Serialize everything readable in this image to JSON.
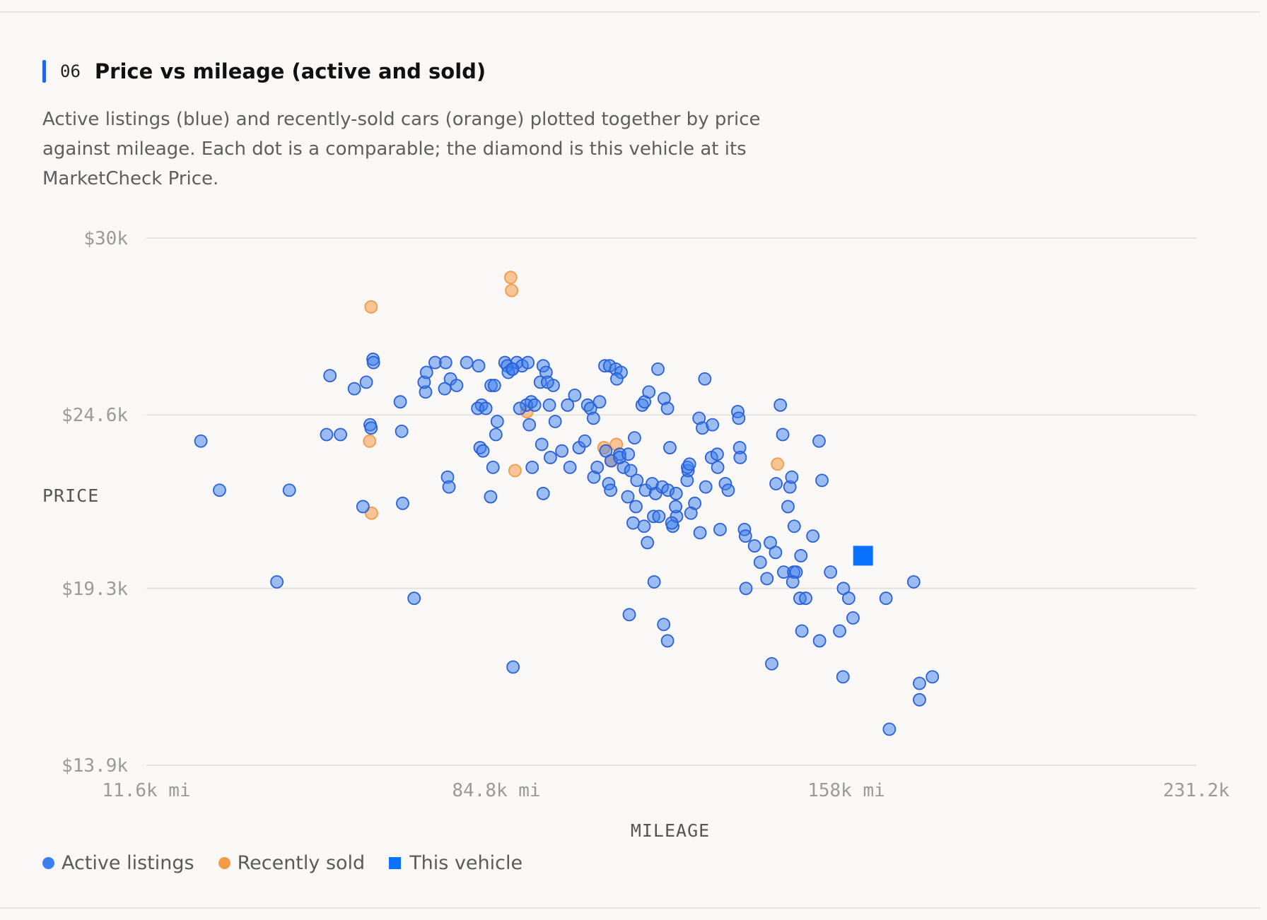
{
  "section": {
    "number": "06",
    "title": "Price vs mileage (active and sold)",
    "description": "Active listings (blue) and recently-sold cars (orange) plotted together by price against mileage. Each dot is a comparable; the diamond is this vehicle at its MarketCheck Price."
  },
  "colors": {
    "accent": "#2563eb",
    "active": "#3b7ff0",
    "sold": "#f59a45",
    "vehicle": "#0a72ff"
  },
  "chart_data": {
    "type": "scatter",
    "xlabel": "MILEAGE",
    "ylabel": "PRICE",
    "xlim": [
      11600,
      231200
    ],
    "ylim": [
      13900,
      30000
    ],
    "x_ticks": [
      {
        "value": 11600,
        "label": "11.6k mi"
      },
      {
        "value": 84800,
        "label": "84.8k mi"
      },
      {
        "value": 158000,
        "label": "158k mi"
      },
      {
        "value": 231200,
        "label": "231.2k"
      }
    ],
    "y_ticks": [
      {
        "value": 30000,
        "label": "$30k"
      },
      {
        "value": 24600,
        "label": "$24.6k"
      },
      {
        "value": 19300,
        "label": "$19.3k"
      },
      {
        "value": 13900,
        "label": "$13.9k"
      }
    ],
    "grid": true,
    "legend": [
      {
        "name": "Active listings",
        "shape": "circle",
        "color": "#3b7ff0"
      },
      {
        "name": "Recently sold",
        "shape": "circle",
        "color": "#f59a45"
      },
      {
        "name": "This vehicle",
        "shape": "square",
        "color": "#0a72ff"
      }
    ],
    "series": [
      {
        "name": "Active listings",
        "points": [
          [
            23000,
            23800
          ],
          [
            26900,
            22300
          ],
          [
            41500,
            22300
          ],
          [
            38900,
            19500
          ],
          [
            50000,
            25800
          ],
          [
            49300,
            24000
          ],
          [
            52200,
            24000
          ],
          [
            55100,
            25400
          ],
          [
            57600,
            25600
          ],
          [
            58400,
            24300
          ],
          [
            58600,
            24200
          ],
          [
            59000,
            26300
          ],
          [
            59100,
            26200
          ],
          [
            56900,
            21800
          ],
          [
            65000,
            24100
          ],
          [
            64700,
            25000
          ],
          [
            65200,
            21900
          ],
          [
            67600,
            19000
          ],
          [
            70000,
            25300
          ],
          [
            69700,
            25600
          ],
          [
            70200,
            25900
          ],
          [
            72000,
            26200
          ],
          [
            74200,
            26200
          ],
          [
            75200,
            25700
          ],
          [
            74000,
            25400
          ],
          [
            76500,
            25500
          ],
          [
            78600,
            26200
          ],
          [
            74600,
            22700
          ],
          [
            74900,
            22400
          ],
          [
            81100,
            26100
          ],
          [
            81700,
            24900
          ],
          [
            80900,
            24800
          ],
          [
            83700,
            25500
          ],
          [
            82600,
            24800
          ],
          [
            84400,
            25500
          ],
          [
            81400,
            23600
          ],
          [
            82000,
            23500
          ],
          [
            84700,
            24000
          ],
          [
            85000,
            24400
          ],
          [
            84100,
            23000
          ],
          [
            83600,
            22100
          ],
          [
            86600,
            26200
          ],
          [
            87100,
            26100
          ],
          [
            88100,
            26000
          ],
          [
            89100,
            26200
          ],
          [
            90200,
            26100
          ],
          [
            91400,
            26200
          ],
          [
            87300,
            25900
          ],
          [
            88200,
            26000
          ],
          [
            92100,
            25000
          ],
          [
            91100,
            24900
          ],
          [
            94000,
            25600
          ],
          [
            94600,
            26100
          ],
          [
            95200,
            25900
          ],
          [
            96700,
            25500
          ],
          [
            95500,
            25600
          ],
          [
            89700,
            24800
          ],
          [
            91700,
            24300
          ],
          [
            92800,
            24900
          ],
          [
            94300,
            23700
          ],
          [
            96100,
            23300
          ],
          [
            92300,
            23000
          ],
          [
            94600,
            22200
          ],
          [
            95900,
            24900
          ],
          [
            97100,
            24400
          ],
          [
            98500,
            23500
          ],
          [
            99700,
            24900
          ],
          [
            101200,
            25200
          ],
          [
            102100,
            23600
          ],
          [
            100200,
            23000
          ],
          [
            103900,
            24900
          ],
          [
            104500,
            24800
          ],
          [
            105100,
            24500
          ],
          [
            106400,
            25000
          ],
          [
            103300,
            23800
          ],
          [
            105200,
            22700
          ],
          [
            105900,
            23000
          ],
          [
            107500,
            26100
          ],
          [
            108500,
            26100
          ],
          [
            109800,
            26000
          ],
          [
            110900,
            25900
          ],
          [
            110000,
            25700
          ],
          [
            107700,
            23500
          ],
          [
            108800,
            23200
          ],
          [
            110600,
            23400
          ],
          [
            111400,
            23000
          ],
          [
            108300,
            22500
          ],
          [
            108700,
            22300
          ],
          [
            110600,
            23300
          ],
          [
            112400,
            23400
          ],
          [
            113700,
            23900
          ],
          [
            115300,
            24900
          ],
          [
            115800,
            25000
          ],
          [
            116700,
            25300
          ],
          [
            112900,
            22900
          ],
          [
            114200,
            22600
          ],
          [
            112300,
            22100
          ],
          [
            114000,
            21800
          ],
          [
            116000,
            22300
          ],
          [
            117400,
            22500
          ],
          [
            118100,
            22200
          ],
          [
            115700,
            21200
          ],
          [
            116400,
            20700
          ],
          [
            117700,
            21500
          ],
          [
            113400,
            21300
          ],
          [
            122500,
            21500
          ],
          [
            121700,
            21200
          ],
          [
            121500,
            21300
          ],
          [
            119500,
            22400
          ],
          [
            120700,
            22300
          ],
          [
            122400,
            22200
          ],
          [
            117800,
            19500
          ],
          [
            118800,
            21500
          ],
          [
            118600,
            26000
          ],
          [
            119900,
            25100
          ],
          [
            120600,
            24800
          ],
          [
            121100,
            23600
          ],
          [
            122300,
            21800
          ],
          [
            124700,
            22600
          ],
          [
            126300,
            21900
          ],
          [
            124900,
            22900
          ],
          [
            124800,
            23000
          ],
          [
            125200,
            23100
          ],
          [
            127200,
            24500
          ],
          [
            127900,
            24200
          ],
          [
            128400,
            25700
          ],
          [
            125500,
            21600
          ],
          [
            127400,
            21000
          ],
          [
            128600,
            22400
          ],
          [
            129800,
            23300
          ],
          [
            131000,
            23400
          ],
          [
            131100,
            23000
          ],
          [
            130000,
            24300
          ],
          [
            131600,
            21100
          ],
          [
            132700,
            22500
          ],
          [
            133300,
            22300
          ],
          [
            135300,
            24700
          ],
          [
            135500,
            24500
          ],
          [
            135700,
            23600
          ],
          [
            135800,
            23300
          ],
          [
            136700,
            21100
          ],
          [
            136900,
            20900
          ],
          [
            137000,
            19300
          ],
          [
            138800,
            20600
          ],
          [
            140000,
            20100
          ],
          [
            141400,
            19600
          ],
          [
            143300,
            22500
          ],
          [
            144200,
            24900
          ],
          [
            144700,
            24000
          ],
          [
            142100,
            20700
          ],
          [
            143200,
            20400
          ],
          [
            145800,
            21800
          ],
          [
            146200,
            22400
          ],
          [
            146600,
            22700
          ],
          [
            147100,
            21200
          ],
          [
            144900,
            19800
          ],
          [
            147000,
            19800
          ],
          [
            147500,
            19800
          ],
          [
            146800,
            19500
          ],
          [
            148500,
            20300
          ],
          [
            148300,
            19000
          ],
          [
            149500,
            19000
          ],
          [
            148700,
            18000
          ],
          [
            151000,
            20900
          ],
          [
            152300,
            23800
          ],
          [
            152900,
            22600
          ],
          [
            154700,
            19800
          ],
          [
            156600,
            18000
          ],
          [
            157400,
            19300
          ],
          [
            158500,
            19000
          ],
          [
            157300,
            16600
          ],
          [
            159400,
            18400
          ],
          [
            166300,
            19000
          ],
          [
            167000,
            15000
          ],
          [
            172100,
            19500
          ],
          [
            173300,
            15900
          ],
          [
            173300,
            16400
          ],
          [
            176000,
            16600
          ],
          [
            88300,
            16900
          ],
          [
            112600,
            18500
          ],
          [
            119800,
            18200
          ],
          [
            120600,
            17700
          ],
          [
            142400,
            17000
          ],
          [
            152400,
            17700
          ]
        ]
      },
      {
        "name": "Recently sold",
        "points": [
          [
            58600,
            27900
          ],
          [
            87800,
            28800
          ],
          [
            88000,
            28400
          ],
          [
            58300,
            23800
          ],
          [
            58700,
            21600
          ],
          [
            88700,
            22900
          ],
          [
            91200,
            24700
          ],
          [
            107300,
            23600
          ],
          [
            108900,
            23200
          ],
          [
            109900,
            23700
          ],
          [
            143600,
            23100
          ]
        ]
      },
      {
        "name": "This vehicle",
        "points": [
          [
            161500,
            20300
          ]
        ]
      }
    ]
  }
}
